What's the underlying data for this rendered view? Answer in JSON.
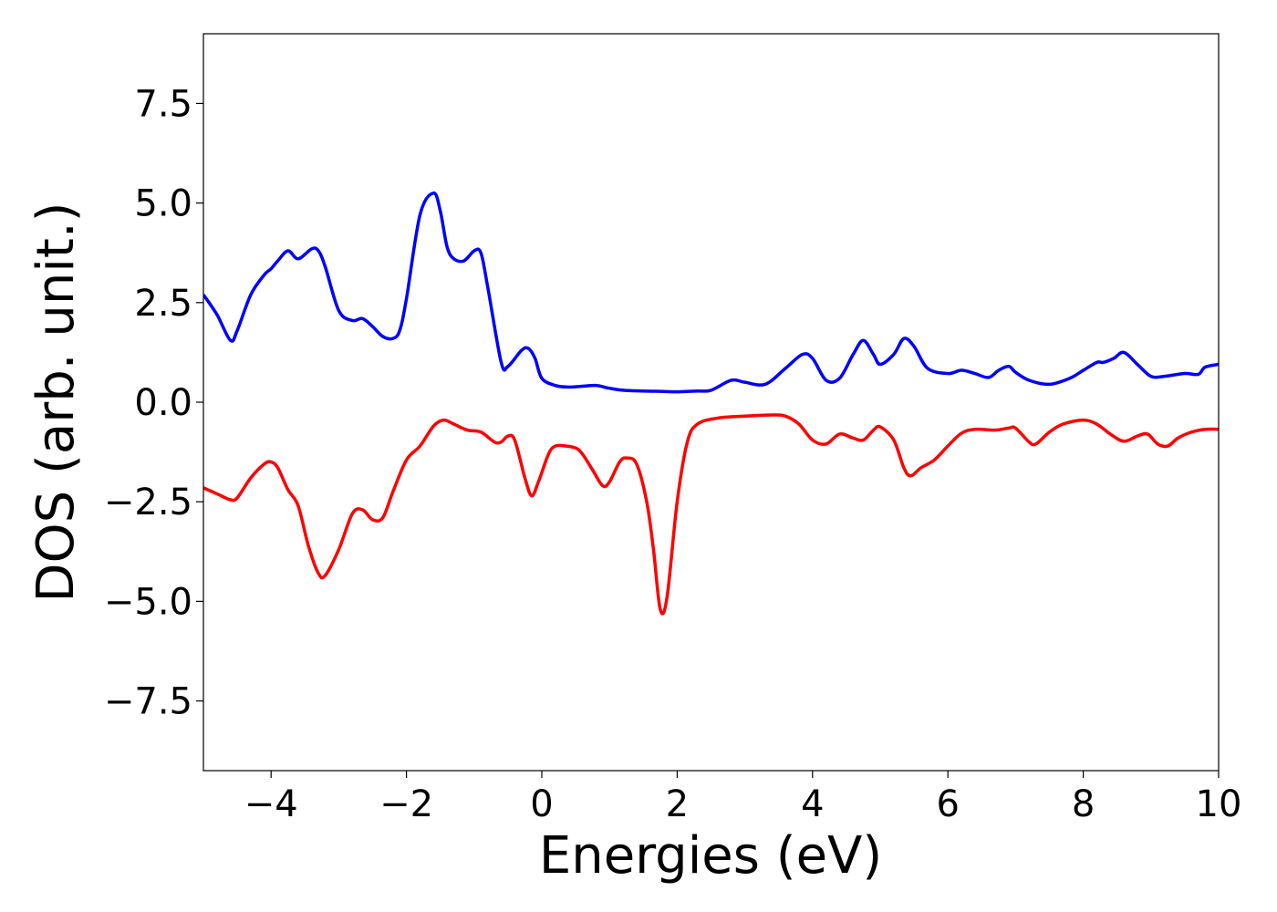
{
  "chart_data": {
    "type": "line",
    "title": "",
    "xlabel": "Energies (eV)",
    "ylabel": "DOS (arb. unit.)",
    "xlim": [
      -5,
      10
    ],
    "ylim": [
      -9.25,
      9.25
    ],
    "grid": false,
    "legend": "none",
    "x_ticks": [
      -4,
      -2,
      0,
      2,
      4,
      6,
      8,
      10
    ],
    "x_tick_labels": [
      "−4",
      "−2",
      "0",
      "2",
      "4",
      "6",
      "8",
      "10"
    ],
    "y_ticks": [
      7.5,
      5.0,
      2.5,
      0.0,
      -2.5,
      -5.0,
      -7.5
    ],
    "y_tick_labels": [
      "7.5",
      "5.0",
      "2.5",
      "0.0",
      "−2.5",
      "−5.0",
      "−7.5"
    ],
    "series": [
      {
        "color": "#0000ff",
        "x": [
          -5.0,
          -4.8,
          -4.6,
          -4.5,
          -4.3,
          -4.1,
          -4.0,
          -3.9,
          -3.75,
          -3.6,
          -3.4,
          -3.3,
          -3.2,
          -3.0,
          -2.8,
          -2.65,
          -2.5,
          -2.35,
          -2.2,
          -2.1,
          -2.0,
          -1.8,
          -1.6,
          -1.5,
          -1.4,
          -1.3,
          -1.15,
          -1.0,
          -0.9,
          -0.8,
          -0.6,
          -0.5,
          -0.3,
          -0.2,
          -0.1,
          0.0,
          0.2,
          0.4,
          0.6,
          0.8,
          1.0,
          1.2,
          1.5,
          1.8,
          2.0,
          2.3,
          2.5,
          2.8,
          3.0,
          3.3,
          3.6,
          3.85,
          4.0,
          4.2,
          4.4,
          4.6,
          4.75,
          4.9,
          5.0,
          5.2,
          5.35,
          5.5,
          5.7,
          6.0,
          6.2,
          6.4,
          6.6,
          6.75,
          6.9,
          7.0,
          7.2,
          7.5,
          7.8,
          8.0,
          8.2,
          8.3,
          8.45,
          8.6,
          8.8,
          9.0,
          9.2,
          9.5,
          9.7,
          9.8,
          10.0
        ],
        "y": [
          2.7,
          2.2,
          1.55,
          1.8,
          2.7,
          3.2,
          3.35,
          3.55,
          3.8,
          3.6,
          3.85,
          3.8,
          3.4,
          2.3,
          2.05,
          2.1,
          1.9,
          1.65,
          1.6,
          1.8,
          2.6,
          4.7,
          5.25,
          4.8,
          3.9,
          3.6,
          3.55,
          3.8,
          3.75,
          2.9,
          1.0,
          0.9,
          1.3,
          1.35,
          1.1,
          0.6,
          0.42,
          0.38,
          0.4,
          0.42,
          0.35,
          0.3,
          0.28,
          0.27,
          0.26,
          0.28,
          0.3,
          0.55,
          0.5,
          0.45,
          0.85,
          1.2,
          1.1,
          0.55,
          0.6,
          1.2,
          1.55,
          1.2,
          0.95,
          1.2,
          1.6,
          1.4,
          0.85,
          0.72,
          0.8,
          0.72,
          0.62,
          0.8,
          0.9,
          0.75,
          0.55,
          0.45,
          0.6,
          0.8,
          1.0,
          1.0,
          1.1,
          1.25,
          0.95,
          0.65,
          0.65,
          0.72,
          0.7,
          0.88,
          0.95
        ]
      },
      {
        "color": "#ff0000",
        "x": [
          -5.0,
          -4.8,
          -4.6,
          -4.5,
          -4.3,
          -4.1,
          -4.0,
          -3.9,
          -3.75,
          -3.6,
          -3.45,
          -3.3,
          -3.2,
          -3.0,
          -2.8,
          -2.65,
          -2.5,
          -2.35,
          -2.2,
          -2.0,
          -1.8,
          -1.6,
          -1.45,
          -1.3,
          -1.1,
          -0.9,
          -0.7,
          -0.6,
          -0.5,
          -0.4,
          -0.25,
          -0.15,
          -0.05,
          0.1,
          0.2,
          0.35,
          0.5,
          0.6,
          0.75,
          0.9,
          1.0,
          1.15,
          1.25,
          1.4,
          1.55,
          1.65,
          1.75,
          1.85,
          2.0,
          2.15,
          2.3,
          2.6,
          3.0,
          3.4,
          3.6,
          3.8,
          4.0,
          4.2,
          4.4,
          4.6,
          4.75,
          4.9,
          5.0,
          5.2,
          5.35,
          5.45,
          5.6,
          5.8,
          6.0,
          6.2,
          6.4,
          6.7,
          6.9,
          7.0,
          7.2,
          7.3,
          7.5,
          7.7,
          8.0,
          8.2,
          8.4,
          8.6,
          8.8,
          8.95,
          9.1,
          9.25,
          9.4,
          9.6,
          9.8,
          10.0
        ],
        "y": [
          -2.15,
          -2.3,
          -2.45,
          -2.4,
          -1.9,
          -1.55,
          -1.5,
          -1.65,
          -2.2,
          -2.6,
          -3.6,
          -4.3,
          -4.35,
          -3.7,
          -2.8,
          -2.7,
          -2.95,
          -2.9,
          -2.25,
          -1.45,
          -1.1,
          -0.6,
          -0.45,
          -0.55,
          -0.7,
          -0.75,
          -1.0,
          -1.0,
          -0.85,
          -0.95,
          -1.9,
          -2.35,
          -2.0,
          -1.3,
          -1.1,
          -1.1,
          -1.15,
          -1.3,
          -1.7,
          -2.1,
          -2.0,
          -1.5,
          -1.4,
          -1.55,
          -2.5,
          -3.7,
          -5.2,
          -4.9,
          -2.5,
          -1.0,
          -0.55,
          -0.4,
          -0.35,
          -0.32,
          -0.35,
          -0.55,
          -0.95,
          -1.05,
          -0.8,
          -0.9,
          -0.95,
          -0.7,
          -0.62,
          -0.95,
          -1.65,
          -1.85,
          -1.65,
          -1.45,
          -1.1,
          -0.78,
          -0.68,
          -0.7,
          -0.65,
          -0.65,
          -1.0,
          -1.05,
          -0.75,
          -0.55,
          -0.45,
          -0.55,
          -0.8,
          -0.98,
          -0.85,
          -0.8,
          -1.05,
          -1.1,
          -0.9,
          -0.75,
          -0.68,
          -0.68
        ]
      }
    ]
  }
}
